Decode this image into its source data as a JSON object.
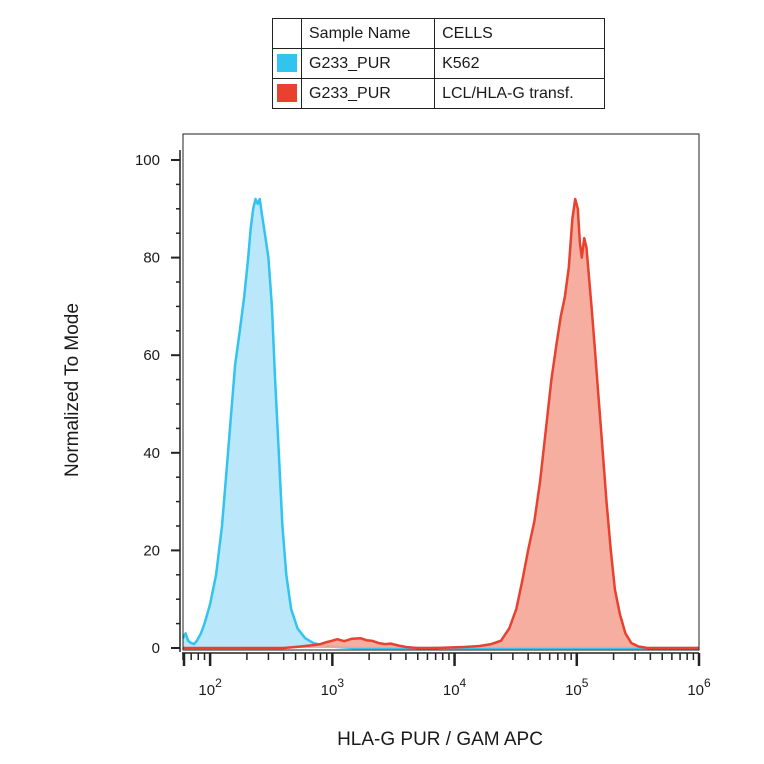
{
  "legend": {
    "headers": [
      "Sample Name",
      "CELLS"
    ],
    "rows": [
      {
        "sample": "G233_PUR",
        "cells": "K562",
        "color": "#33c3ef"
      },
      {
        "sample": "G233_PUR",
        "cells": "LCL/HLA-G transf.",
        "color": "#e8412f"
      }
    ]
  },
  "chart_data": {
    "type": "area",
    "xlabel": "HLA-G PUR / GAM APC",
    "ylabel": "Normalized To Mode",
    "xscale": "log",
    "xlim": [
      60,
      1000000
    ],
    "ylim": [
      0,
      100
    ],
    "x_ticks": [
      {
        "base": "10",
        "exp": "2",
        "value": 100
      },
      {
        "base": "10",
        "exp": "3",
        "value": 1000
      },
      {
        "base": "10",
        "exp": "4",
        "value": 10000
      },
      {
        "base": "10",
        "exp": "5",
        "value": 100000
      },
      {
        "base": "10",
        "exp": "6",
        "value": 1000000
      }
    ],
    "y_ticks": [
      "0",
      "20",
      "40",
      "60",
      "80",
      "100"
    ],
    "series": [
      {
        "cells": "K562",
        "color": "#33c3ef",
        "fill": "#b3e5f9",
        "points": [
          [
            60,
            2
          ],
          [
            63,
            3
          ],
          [
            66,
            1.5
          ],
          [
            70,
            1
          ],
          [
            74,
            0.8
          ],
          [
            78,
            1.5
          ],
          [
            84,
            3
          ],
          [
            90,
            5
          ],
          [
            100,
            9
          ],
          [
            112,
            15
          ],
          [
            125,
            25
          ],
          [
            140,
            40
          ],
          [
            160,
            58
          ],
          [
            175,
            65
          ],
          [
            190,
            72
          ],
          [
            205,
            80
          ],
          [
            215,
            86
          ],
          [
            225,
            90
          ],
          [
            235,
            92
          ],
          [
            245,
            91
          ],
          [
            255,
            92
          ],
          [
            265,
            89
          ],
          [
            280,
            85
          ],
          [
            300,
            80
          ],
          [
            320,
            70
          ],
          [
            340,
            55
          ],
          [
            365,
            40
          ],
          [
            390,
            25
          ],
          [
            420,
            15
          ],
          [
            460,
            8
          ],
          [
            520,
            4
          ],
          [
            600,
            2
          ],
          [
            700,
            1
          ],
          [
            850,
            0.5
          ],
          [
            1100,
            0.2
          ],
          [
            1500,
            0
          ],
          [
            1000000,
            0
          ]
        ]
      },
      {
        "cells": "LCL/HLA-G transf.",
        "color": "#e8412f",
        "fill": "#f5a596",
        "points": [
          [
            60,
            0
          ],
          [
            400,
            0
          ],
          [
            550,
            0.3
          ],
          [
            700,
            0.6
          ],
          [
            800,
            0.8
          ],
          [
            900,
            1.2
          ],
          [
            1000,
            1.5
          ],
          [
            1100,
            1.8
          ],
          [
            1250,
            1.4
          ],
          [
            1450,
            1.9
          ],
          [
            1700,
            2
          ],
          [
            1900,
            1.6
          ],
          [
            2100,
            1.5
          ],
          [
            2400,
            1
          ],
          [
            2700,
            0.8
          ],
          [
            3000,
            0.9
          ],
          [
            3500,
            0.5
          ],
          [
            4000,
            0.2
          ],
          [
            5000,
            0
          ],
          [
            7000,
            0
          ],
          [
            9000,
            0.1
          ],
          [
            12000,
            0.2
          ],
          [
            16000,
            0.4
          ],
          [
            20000,
            0.8
          ],
          [
            24000,
            1.5
          ],
          [
            28000,
            4
          ],
          [
            32000,
            8
          ],
          [
            36000,
            14
          ],
          [
            40000,
            20
          ],
          [
            45000,
            26
          ],
          [
            50000,
            34
          ],
          [
            56000,
            45
          ],
          [
            62000,
            55
          ],
          [
            68000,
            62
          ],
          [
            74000,
            68
          ],
          [
            80000,
            72
          ],
          [
            86000,
            78
          ],
          [
            92000,
            88
          ],
          [
            97000,
            92
          ],
          [
            102000,
            90
          ],
          [
            106000,
            83
          ],
          [
            110000,
            80
          ],
          [
            115000,
            84
          ],
          [
            120000,
            82
          ],
          [
            126000,
            76
          ],
          [
            132000,
            70
          ],
          [
            140000,
            62
          ],
          [
            150000,
            52
          ],
          [
            160000,
            43
          ],
          [
            175000,
            30
          ],
          [
            190000,
            20
          ],
          [
            205000,
            12
          ],
          [
            225000,
            7
          ],
          [
            250000,
            3
          ],
          [
            280000,
            1
          ],
          [
            320000,
            0.3
          ],
          [
            380000,
            0
          ],
          [
            1000000,
            0
          ]
        ]
      }
    ]
  }
}
